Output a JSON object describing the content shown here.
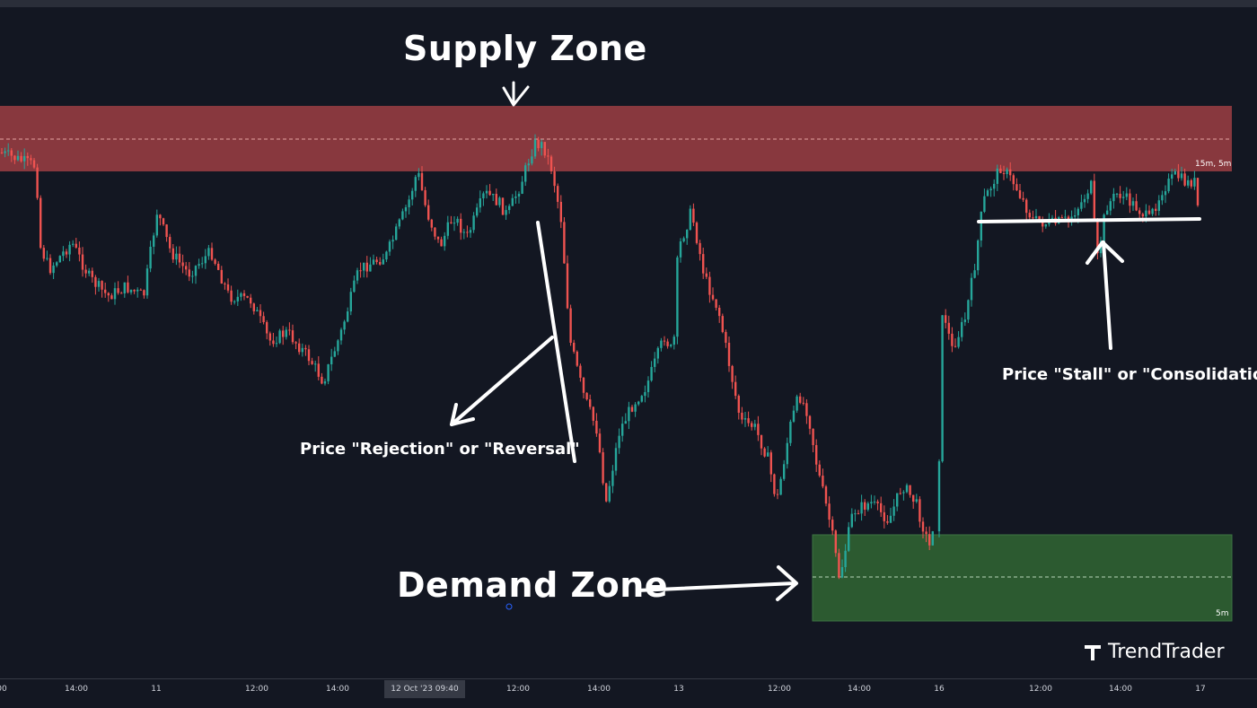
{
  "colors": {
    "background": "#131722",
    "up": "#26a69a",
    "down": "#ef5350",
    "supply_fill": "#8e3a40",
    "demand_fill": "#2e5e31",
    "annotation": "#ffffff"
  },
  "annotations": {
    "supply_zone": "Supply Zone",
    "demand_zone": "Demand Zone",
    "rejection": "Price \"Rejection\" or \"Reversal\"",
    "stall": "Price \"Stall\" or \"Consolidation\""
  },
  "zones": {
    "supply": {
      "label": "15m, 5m"
    },
    "demand": {
      "label": "5m"
    }
  },
  "brand": {
    "name": "TrendTrader",
    "icon": "trendtrader-logo-icon"
  },
  "crosshair_label": "12 Oct '23   09:40",
  "chart_data": {
    "type": "candlestick",
    "title": "",
    "x_ticks": [
      "00",
      "14:00",
      "11",
      "12:00",
      "14:00",
      "12:00",
      "14:00",
      "13",
      "12:00",
      "14:00",
      "16",
      "12:00",
      "14:00",
      "17"
    ],
    "path_anchors": [
      [
        0,
        170
      ],
      [
        40,
        185
      ],
      [
        45,
        275
      ],
      [
        55,
        300
      ],
      [
        80,
        270
      ],
      [
        100,
        310
      ],
      [
        120,
        330
      ],
      [
        140,
        320
      ],
      [
        160,
        330
      ],
      [
        175,
        235
      ],
      [
        190,
        280
      ],
      [
        210,
        305
      ],
      [
        235,
        280
      ],
      [
        255,
        330
      ],
      [
        280,
        335
      ],
      [
        300,
        380
      ],
      [
        320,
        370
      ],
      [
        345,
        400
      ],
      [
        360,
        425
      ],
      [
        380,
        370
      ],
      [
        400,
        300
      ],
      [
        430,
        285
      ],
      [
        455,
        225
      ],
      [
        465,
        190
      ],
      [
        475,
        235
      ],
      [
        490,
        275
      ],
      [
        505,
        240
      ],
      [
        520,
        265
      ],
      [
        540,
        215
      ],
      [
        555,
        225
      ],
      [
        565,
        240
      ],
      [
        580,
        205
      ],
      [
        595,
        160
      ],
      [
        605,
        162
      ],
      [
        615,
        190
      ],
      [
        625,
        245
      ],
      [
        635,
        380
      ],
      [
        650,
        440
      ],
      [
        665,
        480
      ],
      [
        675,
        560
      ],
      [
        690,
        480
      ],
      [
        705,
        450
      ],
      [
        720,
        430
      ],
      [
        740,
        375
      ],
      [
        750,
        395
      ],
      [
        755,
        280
      ],
      [
        770,
        235
      ],
      [
        785,
        310
      ],
      [
        800,
        345
      ],
      [
        815,
        420
      ],
      [
        825,
        470
      ],
      [
        840,
        475
      ],
      [
        855,
        510
      ],
      [
        865,
        560
      ],
      [
        880,
        475
      ],
      [
        890,
        440
      ],
      [
        900,
        460
      ],
      [
        910,
        520
      ],
      [
        925,
        585
      ],
      [
        935,
        645
      ],
      [
        950,
        570
      ],
      [
        970,
        560
      ],
      [
        990,
        580
      ],
      [
        1005,
        540
      ],
      [
        1020,
        560
      ],
      [
        1035,
        610
      ],
      [
        1045,
        550
      ],
      [
        1050,
        340
      ],
      [
        1060,
        390
      ],
      [
        1075,
        355
      ],
      [
        1085,
        300
      ],
      [
        1095,
        225
      ],
      [
        1115,
        185
      ],
      [
        1130,
        205
      ],
      [
        1150,
        245
      ],
      [
        1170,
        250
      ],
      [
        1190,
        245
      ],
      [
        1205,
        225
      ],
      [
        1215,
        205
      ],
      [
        1222,
        290
      ],
      [
        1232,
        230
      ],
      [
        1245,
        215
      ],
      [
        1265,
        230
      ],
      [
        1280,
        245
      ],
      [
        1295,
        210
      ],
      [
        1310,
        195
      ],
      [
        1322,
        205
      ],
      [
        1330,
        200
      ],
      [
        1335,
        238
      ]
    ]
  }
}
